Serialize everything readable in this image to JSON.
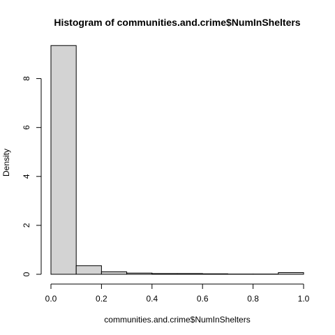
{
  "chart_data": {
    "type": "bar",
    "title": "Histogram of communities.and.crime$NumInShelters",
    "xlabel": "communities.and.crime$NumInShelters",
    "ylabel": "Density",
    "xlim": [
      0,
      1
    ],
    "ylim": [
      0,
      9.5
    ],
    "x_ticks": [
      "0.0",
      "0.2",
      "0.4",
      "0.6",
      "0.8",
      "1.0"
    ],
    "y_ticks": [
      "0",
      "2",
      "4",
      "6",
      "8"
    ],
    "bins": [
      {
        "x0": 0.0,
        "x1": 0.1,
        "value": 9.35
      },
      {
        "x0": 0.1,
        "x1": 0.2,
        "value": 0.35
      },
      {
        "x0": 0.2,
        "x1": 0.3,
        "value": 0.1
      },
      {
        "x0": 0.3,
        "x1": 0.4,
        "value": 0.05
      },
      {
        "x0": 0.4,
        "x1": 0.5,
        "value": 0.03
      },
      {
        "x0": 0.5,
        "x1": 0.6,
        "value": 0.03
      },
      {
        "x0": 0.6,
        "x1": 0.7,
        "value": 0.02
      },
      {
        "x0": 0.7,
        "x1": 0.8,
        "value": 0.01
      },
      {
        "x0": 0.8,
        "x1": 0.9,
        "value": 0.01
      },
      {
        "x0": 0.9,
        "x1": 1.0,
        "value": 0.07
      }
    ],
    "grid": false,
    "legend": "none",
    "colors": {
      "bar_fill": "#d3d3d3",
      "bar_stroke": "#000000",
      "background": "#ffffff"
    }
  }
}
